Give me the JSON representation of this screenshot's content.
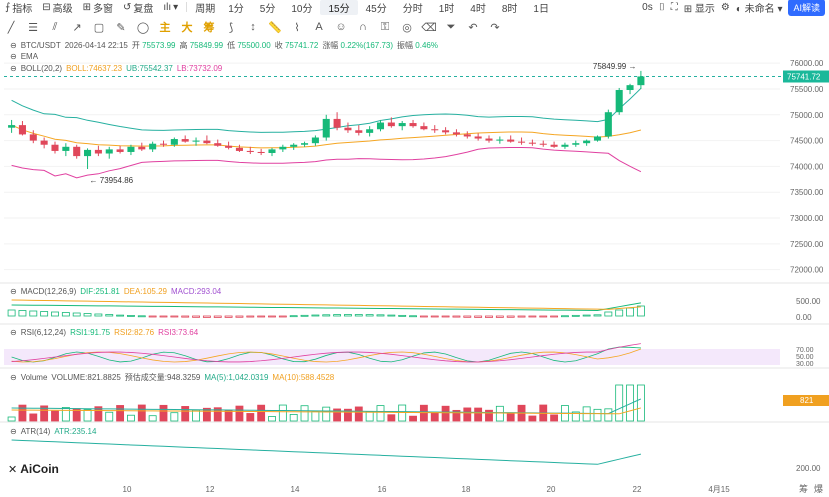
{
  "toolbar": {
    "indicators": "指标",
    "advanced": "高级",
    "multi": "多窗",
    "replay": "复盘",
    "period": "周期",
    "intervals": [
      "1分",
      "5分",
      "10分",
      "15分",
      "45分",
      "分时",
      "1时",
      "4时",
      "8时",
      "1日"
    ],
    "active_interval": "15分",
    "zero_s": "0s",
    "display": "显示",
    "unnamed": "未命名",
    "ai_button": "AI解读",
    "chinese_buttons": [
      "主",
      "大",
      "筹"
    ]
  },
  "ohlc": {
    "symbol": "BTC/USDT",
    "datetime": "2026-04-14 22:15",
    "open_label": "开",
    "open": "75573.99",
    "high_label": "高",
    "high": "75849.99",
    "low_label": "低",
    "low": "75500.00",
    "close_label": "收",
    "close": "75741.72",
    "change_label": "涨幅",
    "change": "0.22%(167.73)",
    "amp_label": "振幅",
    "amp": "0.46%"
  },
  "ema_label": "EMA",
  "boll": {
    "label": "BOLL(20,2)",
    "mid_label": "BOLL:",
    "mid": "74637.23",
    "ub_label": "UB:",
    "ub": "75542.37",
    "lb_label": "LB:",
    "lb": "73732.09"
  },
  "macd": {
    "label": "MACD(12,26,9)",
    "dif": "DIF:251.81",
    "dea": "DEA:105.29",
    "macd": "MACD:293.04",
    "axis": [
      "500.00",
      "0.00"
    ]
  },
  "rsi": {
    "label": "RSI(6,12,24)",
    "rsi1": "RSI1:91.75",
    "rsi2": "RSI2:82.76",
    "rsi3": "RSI3:73.64",
    "axis": [
      "70.00",
      "50.00",
      "30.00"
    ]
  },
  "volume": {
    "label": "Volume",
    "volume": "VOLUME:821.8825",
    "est": "预估成交量:948.3259",
    "ma5": "MA(5):1,042.0319",
    "ma10": "MA(10):588.4528",
    "badge": "821"
  },
  "atr": {
    "label": "ATR(14)",
    "atr": "ATR:235.14",
    "axis": [
      "200.00"
    ]
  },
  "price_axis": [
    "76000.00",
    "75500.00",
    "75000.00",
    "74500.00",
    "74000.00",
    "73500.00",
    "73000.00",
    "72500.00",
    "72000.00"
  ],
  "last_price_badge": "75741.72",
  "high_marker": "75849.99",
  "low_marker": "73954.86",
  "x_axis": [
    "10",
    "12",
    "14",
    "16",
    "18",
    "20",
    "22",
    "4月15"
  ],
  "logo": "AiCoin",
  "corner_icons": [
    "筹",
    "爆"
  ],
  "colors": {
    "up": "#16b979",
    "down": "#e0475a",
    "mid": "#f5a623",
    "ub": "#26b0a0",
    "lb": "#e040a0",
    "accent": "#2f6bff"
  },
  "chart_data": {
    "type": "candlestick",
    "title": "BTC/USDT 15分",
    "ylim": [
      71800,
      76100
    ],
    "candles": [
      [
        74750,
        74900,
        74650,
        74800
      ],
      [
        74800,
        74880,
        74600,
        74620
      ],
      [
        74620,
        74700,
        74450,
        74500
      ],
      [
        74500,
        74560,
        74350,
        74420
      ],
      [
        74420,
        74480,
        74250,
        74300
      ],
      [
        74300,
        74450,
        74200,
        74380
      ],
      [
        74380,
        74420,
        74150,
        74200
      ],
      [
        74200,
        74350,
        73950,
        74320
      ],
      [
        74320,
        74400,
        74200,
        74250
      ],
      [
        74250,
        74380,
        74150,
        74330
      ],
      [
        74330,
        74400,
        74250,
        74280
      ],
      [
        74280,
        74420,
        74220,
        74380
      ],
      [
        74380,
        74460,
        74300,
        74330
      ],
      [
        74330,
        74480,
        74280,
        74440
      ],
      [
        74440,
        74500,
        74380,
        74420
      ],
      [
        74420,
        74560,
        74380,
        74530
      ],
      [
        74530,
        74600,
        74460,
        74480
      ],
      [
        74480,
        74560,
        74400,
        74500
      ],
      [
        74500,
        74600,
        74430,
        74450
      ],
      [
        74450,
        74520,
        74380,
        74400
      ],
      [
        74400,
        74480,
        74330,
        74360
      ],
      [
        74360,
        74420,
        74280,
        74300
      ],
      [
        74300,
        74380,
        74240,
        74280
      ],
      [
        74280,
        74340,
        74220,
        74260
      ],
      [
        74260,
        74360,
        74200,
        74330
      ],
      [
        74330,
        74420,
        74280,
        74380
      ],
      [
        74380,
        74450,
        74320,
        74420
      ],
      [
        74420,
        74480,
        74380,
        74450
      ],
      [
        74450,
        74600,
        74400,
        74560
      ],
      [
        74560,
        75000,
        74500,
        74920
      ],
      [
        74920,
        75050,
        74700,
        74750
      ],
      [
        74750,
        74850,
        74650,
        74700
      ],
      [
        74700,
        74800,
        74600,
        74650
      ],
      [
        74650,
        74780,
        74580,
        74720
      ],
      [
        74720,
        74900,
        74680,
        74850
      ],
      [
        74850,
        74950,
        74750,
        74780
      ],
      [
        74780,
        74880,
        74700,
        74840
      ],
      [
        74840,
        74900,
        74750,
        74780
      ],
      [
        74780,
        74850,
        74700,
        74720
      ],
      [
        74720,
        74800,
        74650,
        74700
      ],
      [
        74700,
        74760,
        74620,
        74660
      ],
      [
        74660,
        74720,
        74580,
        74620
      ],
      [
        74620,
        74680,
        74540,
        74580
      ],
      [
        74580,
        74640,
        74500,
        74540
      ],
      [
        74540,
        74600,
        74460,
        74500
      ],
      [
        74500,
        74580,
        74440,
        74520
      ],
      [
        74520,
        74600,
        74460,
        74480
      ],
      [
        74480,
        74560,
        74420,
        74460
      ],
      [
        74460,
        74520,
        74400,
        74440
      ],
      [
        74440,
        74500,
        74380,
        74420
      ],
      [
        74420,
        74480,
        74360,
        74380
      ],
      [
        74380,
        74460,
        74340,
        74420
      ],
      [
        74420,
        74500,
        74380,
        74450
      ],
      [
        74450,
        74520,
        74400,
        74500
      ],
      [
        74500,
        74600,
        74480,
        74580
      ],
      [
        74580,
        75100,
        74540,
        75050
      ],
      [
        75050,
        75520,
        75000,
        75480
      ],
      [
        75480,
        75600,
        75400,
        75574
      ],
      [
        75574,
        75850,
        75500,
        75742
      ]
    ]
  }
}
